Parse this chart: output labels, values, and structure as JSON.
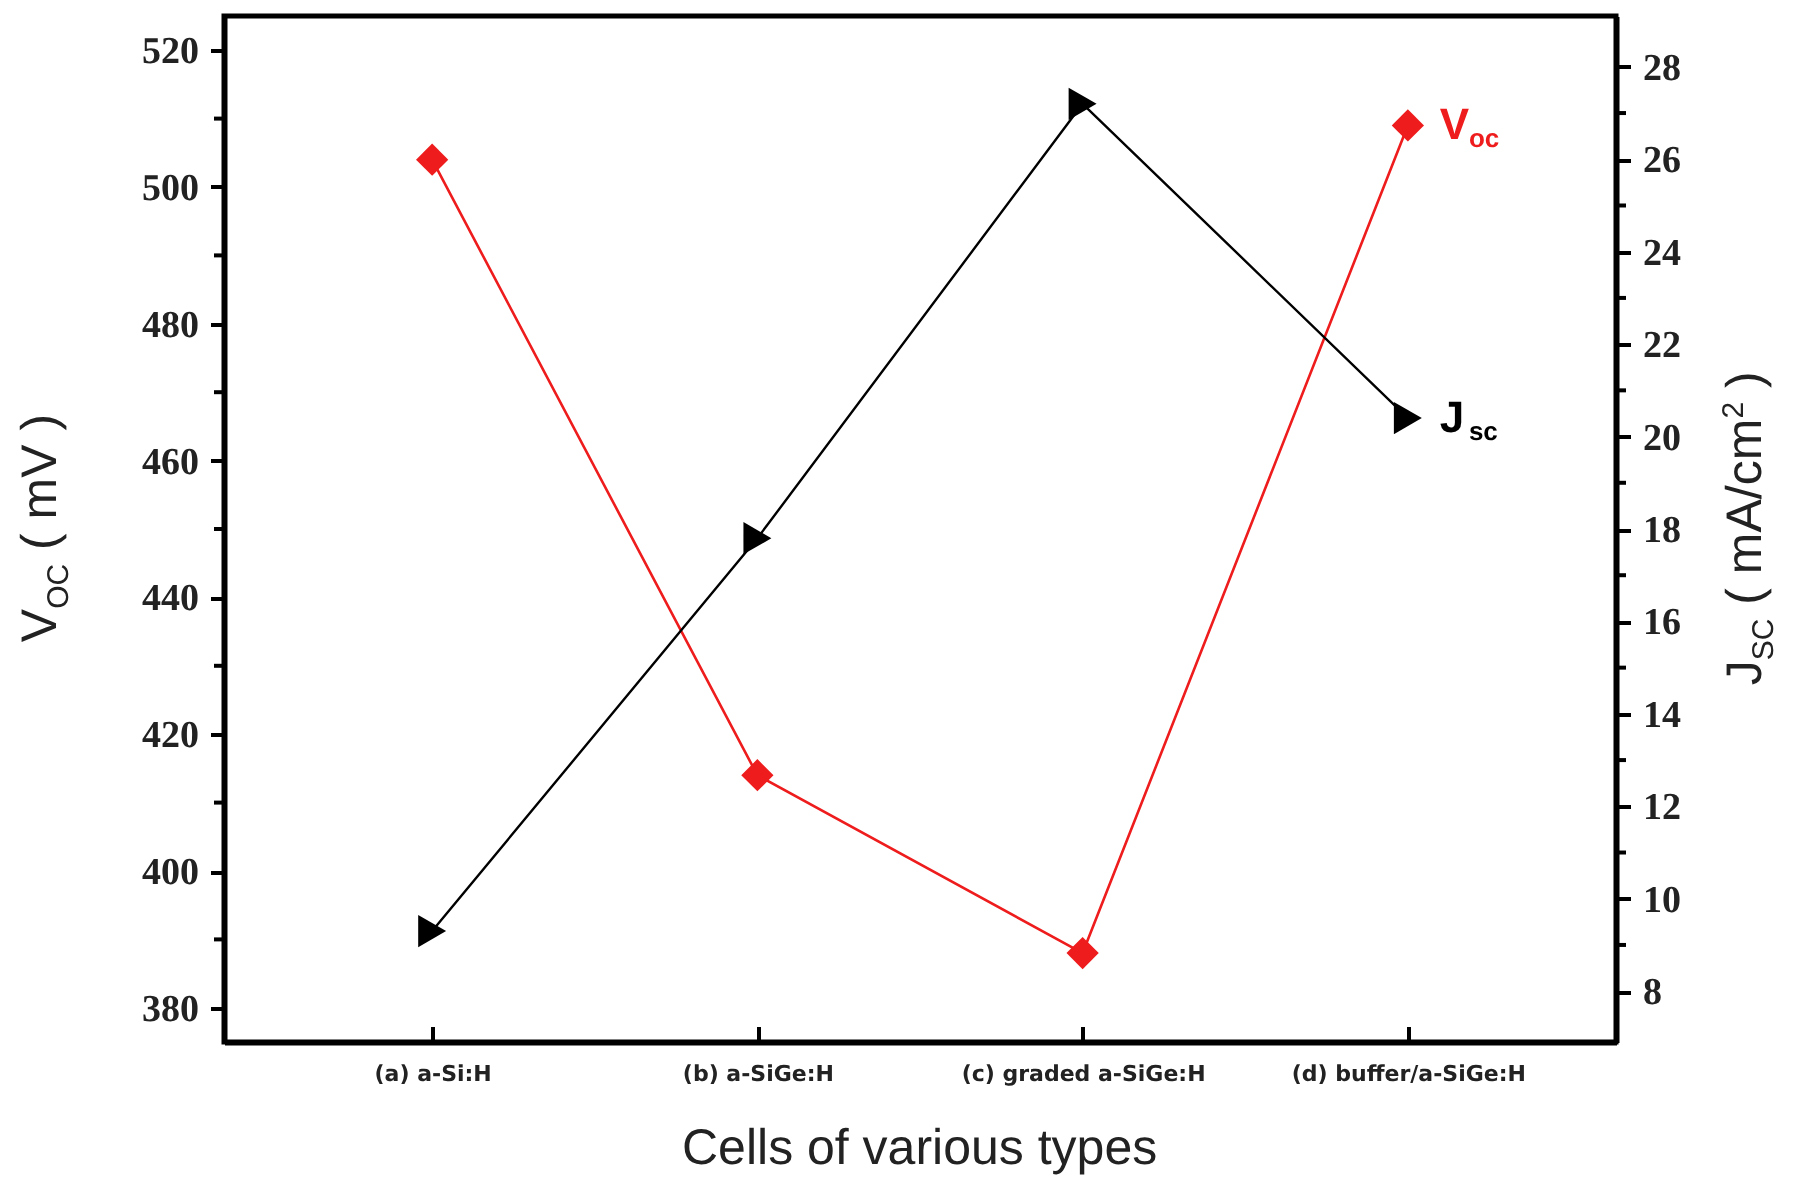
{
  "chart_data": {
    "type": "line",
    "xlabel": "Cells of various types",
    "ylabel": "V$_{OC}$ ( mV )",
    "y2label": "J$_{SC}$ ( mA/cm$^{2}$ )",
    "categories": [
      "(a) a-Si:H",
      "(b) a-SiGe:H",
      "(c) graded a-SiGe:H",
      "(d) buffer/a-SiGe:H"
    ],
    "series": [
      {
        "name": "V$_{oc}$",
        "color": "#ee1c1c",
        "values": [
          504,
          414,
          388,
          509
        ],
        "marker": "diamond"
      },
      {
        "name": "J$_{sc}$",
        "color": "#000000",
        "values": [
          9.3,
          17.8,
          27.2,
          20.4
        ],
        "marker": "triangle",
        "axis": "y2"
      }
    ],
    "ylim": [
      375,
      525
    ],
    "yticks": [
      380,
      {
        "value": 390,
        "label": null
      },
      400,
      {
        "value": 410,
        "label": null
      },
      420,
      {
        "value": 430,
        "label": null
      },
      440,
      {
        "value": 450,
        "label": null
      },
      460,
      {
        "value": 470,
        "label": null
      },
      480,
      {
        "value": 490,
        "label": null
      },
      500,
      {
        "value": 510,
        "label": null
      },
      520
    ],
    "y2lim": [
      6.9,
      29.1
    ],
    "y2ticks": [
      8,
      {
        "value": 9,
        "label": null
      },
      10,
      {
        "value": 11,
        "label": null
      },
      12,
      {
        "value": 13,
        "label": null
      },
      14,
      {
        "value": 15,
        "label": null
      },
      16,
      {
        "value": 17,
        "label": null
      },
      18,
      {
        "value": 19,
        "label": null
      },
      20,
      {
        "value": 21,
        "label": null
      },
      22,
      {
        "value": 23,
        "label": null
      },
      24,
      {
        "value": 25,
        "label": null
      },
      26,
      {
        "value": 27,
        "label": null
      },
      28
    ]
  }
}
